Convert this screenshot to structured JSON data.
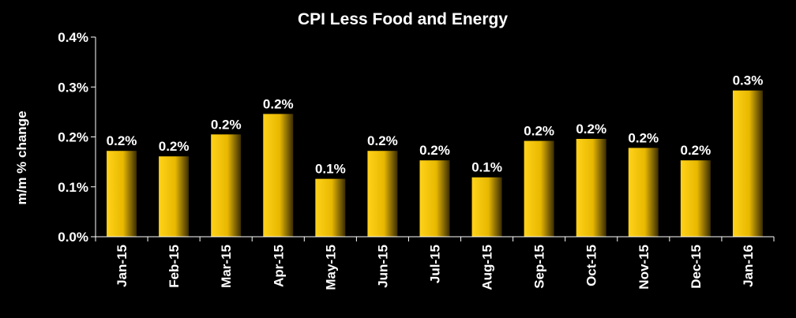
{
  "chart_data": {
    "type": "bar",
    "title": "CPI Less Food and Energy",
    "xlabel": "",
    "ylabel": "m/m % change",
    "categories": [
      "Jan-15",
      "Feb-15",
      "Mar-15",
      "Apr-15",
      "May-15",
      "Jun-15",
      "Jul-15",
      "Aug-15",
      "Sep-15",
      "Oct-15",
      "Nov-15",
      "Dec-15",
      "Jan-16"
    ],
    "values": [
      0.172,
      0.161,
      0.205,
      0.246,
      0.116,
      0.172,
      0.153,
      0.119,
      0.192,
      0.196,
      0.178,
      0.153,
      0.293
    ],
    "data_labels": [
      "0.2%",
      "0.2%",
      "0.2%",
      "0.2%",
      "0.1%",
      "0.2%",
      "0.2%",
      "0.1%",
      "0.2%",
      "0.2%",
      "0.2%",
      "0.2%",
      "0.3%"
    ],
    "yticks": [
      0.0,
      0.1,
      0.2,
      0.3,
      0.4
    ],
    "ytick_labels": [
      "0.0%",
      "0.1%",
      "0.2%",
      "0.3%",
      "0.4%"
    ],
    "ylim": [
      0,
      0.4
    ],
    "grid": false,
    "legend": "none",
    "colors": {
      "background": "#000000",
      "text": "#ffffff",
      "axis": "#ffffff",
      "bar_light": "#ffd21a",
      "bar_mid": "#e8b800",
      "bar_dark": "#3a2c00"
    }
  }
}
